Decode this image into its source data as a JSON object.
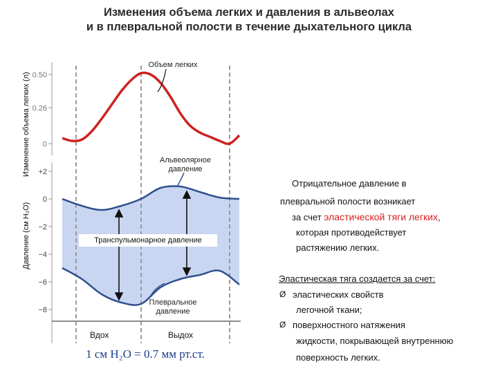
{
  "title": {
    "line1": "Изменения объема легких и давления в альвеолах",
    "line2": "и в плевральной полости в течение дыхательного цикла"
  },
  "chart_data": [
    {
      "type": "line",
      "ylabel": "Изменение объема легких (л)",
      "yticks": [
        "0.50",
        "0.26",
        "0"
      ],
      "ylim": [
        0,
        0.55
      ],
      "series": [
        {
          "name": "Объем легких",
          "color": "#cc2222",
          "x": [
            0,
            0.5,
            1.0,
            1.5,
            2.0,
            2.5,
            3.0,
            3.5,
            4.0,
            4.5,
            5.0,
            5.5,
            6.0,
            6.5,
            7.0,
            7.5,
            8.0,
            8.5,
            9.0
          ],
          "y": [
            0.04,
            0.02,
            0.03,
            0.09,
            0.18,
            0.28,
            0.38,
            0.46,
            0.51,
            0.5,
            0.44,
            0.34,
            0.22,
            0.13,
            0.08,
            0.05,
            0.02,
            0.0,
            0.06
          ]
        }
      ]
    },
    {
      "type": "line",
      "ylabel": "Давление (см H₂O)",
      "yticks": [
        "+2",
        "0",
        "−2",
        "−4",
        "−6",
        "−8"
      ],
      "ylim": [
        -8.8,
        2.5
      ],
      "series": [
        {
          "name": "Альвеолярное давление",
          "color": "#2e4f8c",
          "x": [
            0,
            1,
            2,
            3,
            4,
            5,
            6,
            7,
            8,
            9
          ],
          "y": [
            0.0,
            -0.5,
            -0.8,
            -0.5,
            0.0,
            0.8,
            0.9,
            0.5,
            0.1,
            0.0
          ]
        },
        {
          "name": "Плевральное давление",
          "color": "#2e4f8c",
          "x": [
            0,
            1,
            2,
            3,
            4,
            5,
            6,
            7,
            8,
            9
          ],
          "y": [
            -5.0,
            -5.8,
            -6.9,
            -7.5,
            -7.6,
            -6.4,
            -5.8,
            -5.5,
            -5.2,
            -6.2
          ]
        }
      ],
      "annotations": [
        "Транспульмонарное давление",
        "Вдох",
        "Выдох"
      ]
    }
  ],
  "labels": {
    "lung_volume": "Объем легких",
    "alveolar_l1": "Альвеолярное",
    "alveolar_l2": "давление",
    "pleural_l1": "Плевральное",
    "pleural_l2": "давление",
    "transpulmonary": "Транспульмонарное давление",
    "inhale": "Вдох",
    "exhale": "Выдох",
    "scale": "1 см H₂O = 0.7 мм рт.ст."
  },
  "axis": {
    "volume_ylabel": "Изменение объема легких (л)",
    "pressure_ylabel": "Давление (см H₂O)"
  },
  "explanation": {
    "p1": "Отрицательное давление в",
    "p2": "плевральной полости возникает",
    "p3a": "за счет ",
    "p3b": "эластической тяги легких",
    "p3c": ",",
    "p4": "которая противодействует",
    "p5": "растяжению легких.",
    "heading": "Эластическая тяга создается за счет:",
    "b1a": "эластических свойств",
    "b1b": "легочной ткани;",
    "b2a": "поверхностного натяжения",
    "b2b": "жидкости, покрывающей внутреннюю",
    "b2c": "поверхность легких.",
    "bullet_glyph": "Ø"
  }
}
